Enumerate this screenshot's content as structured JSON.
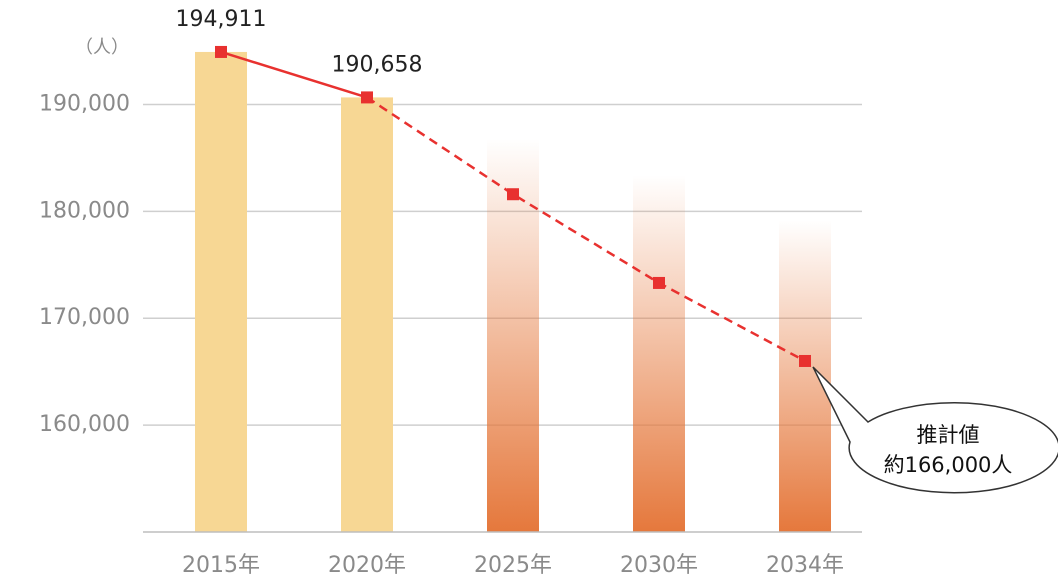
{
  "chart_data": {
    "type": "bar_line",
    "unit_label": "（人）",
    "categories": [
      "2015年",
      "2020年",
      "2025年",
      "2030年",
      "2034年"
    ],
    "bar_values": [
      194911,
      190658,
      186800,
      183400,
      179200
    ],
    "bar_colors": [
      "#f7d794",
      "#f7d794",
      "#e5783c",
      "#e5783c",
      "#e5783c"
    ],
    "bar_gradient": [
      false,
      false,
      true,
      true,
      true
    ],
    "values": [
      194911,
      190658,
      181600,
      173300,
      166000
    ],
    "value_labels": [
      "194,911",
      "190,658",
      null,
      null,
      null
    ],
    "line_color": "#e8312f",
    "dashed_from": 1,
    "ylim": [
      150000,
      195000
    ],
    "yticks": [
      {
        "value": 160000,
        "label": "160,000"
      },
      {
        "value": 170000,
        "label": "170,000"
      },
      {
        "value": 180000,
        "label": "180,000"
      },
      {
        "value": 190000,
        "label": "190,000"
      }
    ],
    "grid": true,
    "annotation": {
      "lines": [
        "推計値",
        "約166,000人"
      ],
      "point": 4
    }
  }
}
